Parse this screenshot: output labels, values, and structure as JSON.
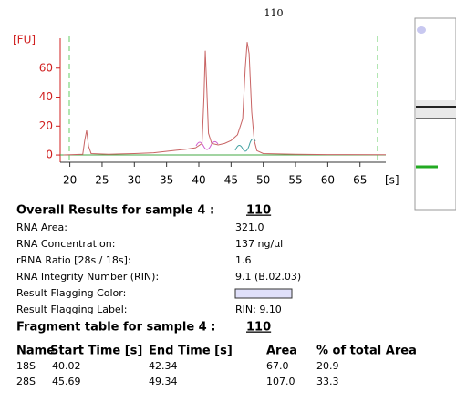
{
  "chart_data": {
    "type": "line",
    "title": "110",
    "y_label": "[FU]",
    "x_label": "[s]",
    "x": [
      19,
      22,
      22.3,
      22.6,
      22.9,
      23.3,
      26,
      30,
      33,
      36,
      38,
      39.5,
      40.5,
      40.8,
      41.0,
      41.2,
      41.5,
      42,
      43,
      44,
      45,
      46,
      46.8,
      47.2,
      47.5,
      47.8,
      48.2,
      48.6,
      49,
      50,
      55,
      60,
      69
    ],
    "series": [
      {
        "color": "#c86464",
        "values": [
          0,
          0.5,
          10,
          17,
          6,
          1,
          0.5,
          1,
          1.5,
          3,
          4,
          5,
          8,
          40,
          72,
          50,
          15,
          8,
          7,
          8,
          10,
          14,
          25,
          60,
          78,
          70,
          30,
          10,
          3,
          1,
          0.5,
          0.3,
          0.2
        ]
      }
    ],
    "xlim": [
      18.5,
      69
    ],
    "ylim": [
      -5,
      80
    ],
    "xticks": [
      20,
      25,
      30,
      35,
      40,
      45,
      50,
      55,
      60,
      65
    ],
    "yticks": [
      0,
      20,
      40,
      60
    ]
  },
  "results": {
    "title": "Overall Results for sample 4  :",
    "sample": "110",
    "rows": [
      {
        "label": "RNA Area:",
        "value": "321.0"
      },
      {
        "label": "RNA Concentration:",
        "value": "137 ng/µl"
      },
      {
        "label": "rRNA Ratio [28s / 18s]:",
        "value": "1.6"
      },
      {
        "label": "RNA Integrity Number (RIN):",
        "value": "9.1  (B.02.03)"
      },
      {
        "label": "Result Flagging Color:"
      },
      {
        "label": "Result Flagging Label:",
        "value": "RIN: 9.10"
      }
    ]
  },
  "fragments": {
    "title": "Fragment table for sample 4  :",
    "sample": "110",
    "headers": [
      "Name",
      "Start Time [s]",
      "End Time [s]",
      "Area",
      "% of total Area"
    ],
    "rows": [
      [
        "18S",
        "40.02",
        "42.34",
        "67.0",
        "20.9"
      ],
      [
        "28S",
        "45.69",
        "49.34",
        "107.0",
        "33.3"
      ]
    ]
  }
}
